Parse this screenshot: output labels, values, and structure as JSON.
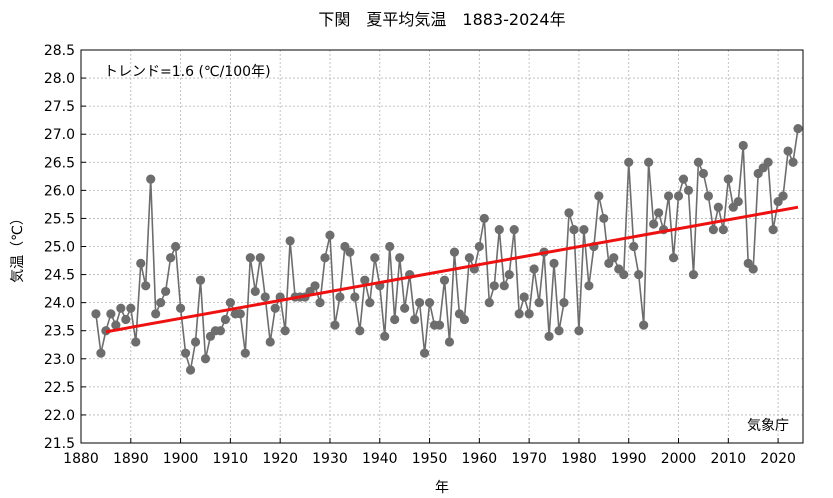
{
  "chart_data": {
    "type": "line",
    "title": "下関　夏平均気温　1883-2024年",
    "xlabel": "年",
    "ylabel": "気温（℃）",
    "annotation": "トレンド=1.6 (℃/100年)",
    "source": "気象庁",
    "xlim": [
      1880,
      2025
    ],
    "ylim": [
      21.5,
      28.5
    ],
    "x_ticks": [
      "1880",
      "1890",
      "1900",
      "1910",
      "1920",
      "1930",
      "1940",
      "1950",
      "1960",
      "1970",
      "1980",
      "1990",
      "2000",
      "2010",
      "2020"
    ],
    "y_ticks": [
      "21.5",
      "22.0",
      "22.5",
      "23.0",
      "23.5",
      "24.0",
      "24.5",
      "25.0",
      "25.5",
      "26.0",
      "26.5",
      "27.0",
      "27.5",
      "28.0",
      "28.5"
    ],
    "grid": true,
    "series": [
      {
        "color": "#6d6d6d",
        "x": [
          1883,
          1884,
          1885,
          1886,
          1887,
          1888,
          1889,
          1890,
          1891,
          1892,
          1893,
          1894,
          1895,
          1896,
          1897,
          1898,
          1899,
          1900,
          1901,
          1902,
          1903,
          1904,
          1905,
          1906,
          1907,
          1908,
          1909,
          1910,
          1911,
          1912,
          1913,
          1914,
          1915,
          1916,
          1917,
          1918,
          1919,
          1920,
          1921,
          1922,
          1923,
          1924,
          1925,
          1926,
          1927,
          1928,
          1929,
          1930,
          1931,
          1932,
          1933,
          1934,
          1935,
          1936,
          1937,
          1938,
          1939,
          1940,
          1941,
          1942,
          1943,
          1944,
          1945,
          1946,
          1947,
          1948,
          1949,
          1950,
          1951,
          1952,
          1953,
          1954,
          1955,
          1956,
          1957,
          1958,
          1959,
          1960,
          1961,
          1962,
          1963,
          1964,
          1965,
          1966,
          1967,
          1968,
          1969,
          1970,
          1971,
          1972,
          1973,
          1974,
          1975,
          1976,
          1977,
          1978,
          1979,
          1980,
          1981,
          1982,
          1983,
          1984,
          1985,
          1986,
          1987,
          1988,
          1989,
          1990,
          1991,
          1992,
          1993,
          1994,
          1995,
          1996,
          1997,
          1998,
          1999,
          2000,
          2001,
          2002,
          2003,
          2004,
          2005,
          2006,
          2007,
          2008,
          2009,
          2010,
          2011,
          2012,
          2013,
          2014,
          2015,
          2016,
          2017,
          2018,
          2019,
          2020,
          2021,
          2022,
          2023,
          2024
        ],
        "y": [
          23.8,
          23.1,
          23.5,
          23.8,
          23.6,
          23.9,
          23.7,
          23.9,
          23.3,
          24.7,
          24.3,
          26.2,
          23.8,
          24.0,
          24.2,
          24.8,
          25.0,
          23.9,
          23.1,
          22.8,
          23.3,
          24.4,
          23.0,
          23.4,
          23.5,
          23.5,
          23.7,
          24.0,
          23.8,
          23.8,
          23.1,
          24.8,
          24.2,
          24.8,
          24.1,
          23.3,
          23.9,
          24.1,
          23.5,
          25.1,
          24.1,
          24.1,
          24.1,
          24.2,
          24.3,
          24.0,
          24.8,
          25.2,
          23.6,
          24.1,
          25.0,
          24.9,
          24.1,
          23.5,
          24.4,
          24.0,
          24.8,
          24.3,
          23.4,
          25.0,
          23.7,
          24.8,
          23.9,
          24.5,
          23.7,
          24.0,
          23.1,
          24.0,
          23.6,
          23.6,
          24.4,
          23.3,
          24.9,
          23.8,
          23.7,
          24.8,
          24.6,
          25.0,
          25.5,
          24.0,
          24.3,
          25.3,
          24.3,
          24.5,
          25.3,
          23.8,
          24.1,
          23.8,
          24.6,
          24.0,
          24.9,
          23.4,
          24.7,
          23.5,
          24.0,
          25.6,
          25.3,
          23.5,
          25.3,
          24.3,
          25.0,
          25.9,
          25.5,
          24.7,
          24.8,
          24.6,
          24.5,
          26.5,
          25.0,
          24.5,
          23.6,
          26.5,
          25.4,
          25.6,
          25.3,
          25.9,
          24.8,
          25.9,
          26.2,
          26.0,
          24.5,
          26.5,
          26.3,
          25.9,
          25.3,
          25.7,
          25.3,
          26.2,
          25.7,
          25.8,
          26.8,
          24.7,
          24.6,
          26.3,
          26.4,
          26.5,
          25.3,
          25.8,
          25.9,
          26.7,
          26.5,
          27.1
        ]
      },
      {
        "color": "#ee1111",
        "kind": "trend",
        "x": [
          1885,
          2024
        ],
        "y": [
          23.48,
          25.7
        ]
      }
    ]
  }
}
